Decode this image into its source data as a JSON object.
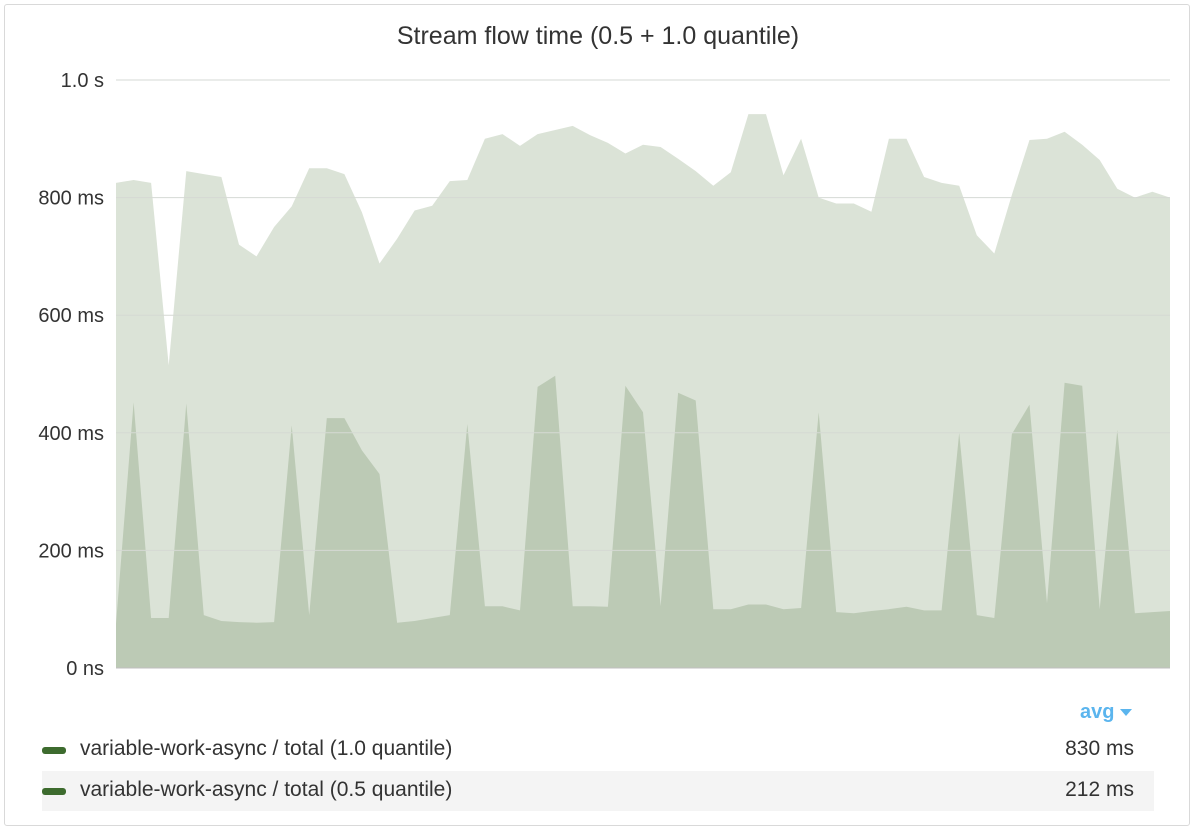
{
  "title": "Stream flow time (0.5 + 1.0 quantile)",
  "aggregation": {
    "label": "avg",
    "icon": "caret-down-icon"
  },
  "colors": {
    "series_max_fill": "#dbe3d7",
    "series_median_fill": "#bccab5",
    "legend_swatch": "#3d6b2e",
    "gridline": "#d5d9d4",
    "axis": "#bfbfbf",
    "accent": "#5bb5ee"
  },
  "legend": [
    {
      "label": "variable-work-async / total (1.0 quantile)",
      "value": "830 ms"
    },
    {
      "label": "variable-work-async / total (0.5 quantile)",
      "value": "212 ms"
    }
  ],
  "chart_data": {
    "type": "area",
    "title": "Stream flow time (0.5 + 1.0 quantile)",
    "xlabel": "",
    "ylabel": "",
    "yunit": "ms",
    "ylim": [
      0,
      1000
    ],
    "yticks": [
      {
        "value": 0,
        "label": "0 ns"
      },
      {
        "value": 200,
        "label": "200 ms"
      },
      {
        "value": 400,
        "label": "400 ms"
      },
      {
        "value": 600,
        "label": "600 ms"
      },
      {
        "value": 800,
        "label": "800 ms"
      },
      {
        "value": 1000,
        "label": "1.0 s"
      }
    ],
    "grid": true,
    "legend_position": "bottom",
    "series": [
      {
        "name": "variable-work-async / total (1.0 quantile)",
        "values": [
          825,
          830,
          825,
          515,
          845,
          840,
          835,
          720,
          700,
          750,
          785,
          850,
          850,
          840,
          775,
          688,
          730,
          778,
          786,
          828,
          830,
          900,
          908,
          888,
          908,
          915,
          922,
          906,
          893,
          875,
          890,
          886,
          866,
          845,
          820,
          843,
          942,
          942,
          838,
          900,
          800,
          790,
          790,
          776,
          900,
          900,
          835,
          825,
          820,
          736,
          705,
          805,
          898,
          900,
          912,
          890,
          864,
          815,
          800,
          810,
          800
        ]
      },
      {
        "name": "variable-work-async / total (0.5 quantile)",
        "values": [
          75,
          452,
          85,
          85,
          450,
          90,
          80,
          78,
          77,
          78,
          413,
          90,
          425,
          425,
          370,
          330,
          77,
          80,
          85,
          90,
          415,
          105,
          105,
          98,
          478,
          497,
          105,
          105,
          104,
          480,
          435,
          105,
          468,
          455,
          100,
          100,
          108,
          108,
          100,
          102,
          435,
          95,
          93,
          97,
          100,
          104,
          98,
          98,
          400,
          90,
          85,
          398,
          448,
          110,
          485,
          480,
          100,
          405,
          93,
          95,
          97
        ]
      }
    ]
  }
}
